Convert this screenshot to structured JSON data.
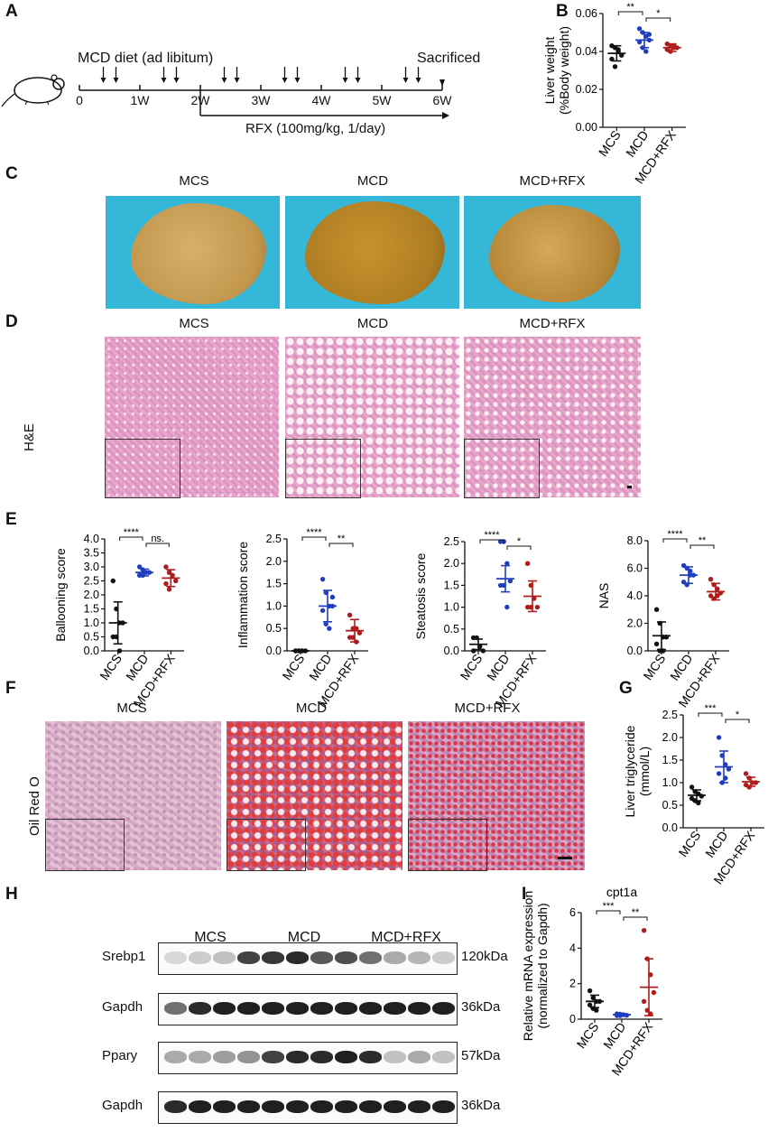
{
  "panels": {
    "A": "A",
    "B": "B",
    "C": "C",
    "D": "D",
    "E": "E",
    "F": "F",
    "G": "G",
    "H": "H",
    "I": "I"
  },
  "groups": [
    "MCS",
    "MCD",
    "MCD+RFX"
  ],
  "colors": {
    "MCS": "#111111",
    "MCD": "#1f3fbf",
    "MCD+RFX": "#b01c1c"
  },
  "panelA": {
    "diet_label": "MCD diet (ad libitum)",
    "sacrificed": "Sacrificed",
    "timeline_ticks": [
      "0",
      "1W",
      "2W",
      "3W",
      "4W",
      "5W",
      "6W"
    ],
    "treatment": "RFX (100mg/kg, 1/day)",
    "arrow_count": 12
  },
  "panelD": {
    "stain": "H&E"
  },
  "panelF": {
    "stain": "Oil Red O"
  },
  "panelH": {
    "group_headers": [
      "MCS",
      "MCD",
      "MCD+RFX"
    ],
    "rows": [
      {
        "protein": "Srebp1",
        "size": "120kDa"
      },
      {
        "protein": "Gapdh",
        "size": "36kDa"
      },
      {
        "protein": "Ppary",
        "size": "57kDa"
      },
      {
        "protein": "Gapdh",
        "size": "36kDa"
      }
    ]
  },
  "chart_data": [
    {
      "panel": "B",
      "type": "scatter",
      "ylabel": "Liver weight\n(%Body weight)",
      "ylim": [
        0,
        0.06
      ],
      "yticks": [
        "0.00",
        "0.02",
        "0.04",
        "0.06"
      ],
      "categories": [
        "MCS",
        "MCD",
        "MCD+RFX"
      ],
      "means": [
        0.039,
        0.046,
        0.042
      ],
      "sd": [
        0.004,
        0.004,
        0.002
      ],
      "points": [
        [
          0.043,
          0.042,
          0.04,
          0.038,
          0.036,
          0.032,
          0.041
        ],
        [
          0.052,
          0.05,
          0.048,
          0.046,
          0.045,
          0.042,
          0.04,
          0.049
        ],
        [
          0.044,
          0.043,
          0.042,
          0.042,
          0.041,
          0.04,
          0.043
        ]
      ],
      "sig": [
        {
          "from": 0,
          "to": 1,
          "label": "**"
        },
        {
          "from": 1,
          "to": 2,
          "label": "*"
        }
      ]
    },
    {
      "panel": "E1",
      "type": "scatter",
      "ylabel": "Ballooning score",
      "ylim": [
        0,
        4
      ],
      "yticks": [
        "0.0",
        "0.5",
        "1.0",
        "1.5",
        "2.0",
        "2.5",
        "3.0",
        "3.5",
        "4.0"
      ],
      "categories": [
        "MCS",
        "MCD",
        "MCD+RFX"
      ],
      "means": [
        1.0,
        2.8,
        2.6
      ],
      "sd": [
        0.75,
        0.12,
        0.3
      ],
      "points": [
        [
          2.5,
          1.5,
          1.0,
          1.0,
          0.5,
          0.5,
          0.0
        ],
        [
          3.0,
          2.9,
          2.8,
          2.8,
          2.7,
          2.7
        ],
        [
          3.0,
          2.8,
          2.7,
          2.5,
          2.4,
          2.2
        ]
      ],
      "sig": [
        {
          "from": 0,
          "to": 1,
          "label": "****"
        },
        {
          "from": 1,
          "to": 2,
          "label": "ns."
        }
      ]
    },
    {
      "panel": "E2",
      "type": "scatter",
      "ylabel": "Inflammation score",
      "ylim": [
        0,
        2.5
      ],
      "yticks": [
        "0.0",
        "0.5",
        "1.0",
        "1.5",
        "2.0",
        "2.5"
      ],
      "categories": [
        "MCS",
        "MCD",
        "MCD+RFX"
      ],
      "means": [
        0.0,
        1.0,
        0.45
      ],
      "sd": [
        0.0,
        0.35,
        0.25
      ],
      "points": [
        [
          0,
          0,
          0,
          0,
          0,
          0,
          0
        ],
        [
          1.6,
          1.3,
          1.0,
          1.0,
          0.9,
          0.6,
          0.5,
          1.2
        ],
        [
          0.8,
          0.5,
          0.5,
          0.4,
          0.3,
          0.3,
          0.2
        ]
      ],
      "sig": [
        {
          "from": 0,
          "to": 1,
          "label": "****"
        },
        {
          "from": 1,
          "to": 2,
          "label": "**"
        }
      ]
    },
    {
      "panel": "E3",
      "type": "scatter",
      "ylabel": "Steatosis score",
      "ylim": [
        0,
        2.5
      ],
      "yticks": [
        "0.0",
        "0.5",
        "1.0",
        "1.5",
        "2.0",
        "2.5"
      ],
      "categories": [
        "MCS",
        "MCD",
        "MCD+RFX"
      ],
      "means": [
        0.15,
        1.65,
        1.25
      ],
      "sd": [
        0.12,
        0.3,
        0.35
      ],
      "points": [
        [
          0.3,
          0.3,
          0.1,
          0.0,
          0.0
        ],
        [
          2.5,
          2.5,
          2.0,
          1.6,
          1.5,
          1.5,
          1.0
        ],
        [
          2.0,
          1.5,
          1.2,
          1.0,
          1.0,
          1.0
        ]
      ],
      "sig": [
        {
          "from": 0,
          "to": 1,
          "label": "****"
        },
        {
          "from": 1,
          "to": 2,
          "label": "*"
        }
      ]
    },
    {
      "panel": "E4",
      "type": "scatter",
      "ylabel": "NAS",
      "ylim": [
        0,
        8
      ],
      "yticks": [
        "0.0",
        "2.0",
        "4.0",
        "6.0",
        "8.0"
      ],
      "categories": [
        "MCS",
        "MCD",
        "MCD+RFX"
      ],
      "means": [
        1.1,
        5.5,
        4.3
      ],
      "sd": [
        1.0,
        0.6,
        0.6
      ],
      "points": [
        [
          3.0,
          2.0,
          1.0,
          1.0,
          0.5,
          0.0,
          0.0
        ],
        [
          6.2,
          6.0,
          5.5,
          5.5,
          5.0,
          4.8,
          5.8
        ],
        [
          5.2,
          4.8,
          4.5,
          4.2,
          4.0,
          3.8,
          4.0
        ]
      ],
      "sig": [
        {
          "from": 0,
          "to": 1,
          "label": "****"
        },
        {
          "from": 1,
          "to": 2,
          "label": "**"
        }
      ]
    },
    {
      "panel": "G",
      "type": "scatter",
      "ylabel": "Liver triglyceride\n(mmol/L)",
      "ylim": [
        0,
        2.5
      ],
      "yticks": [
        "0.0",
        "0.5",
        "1.0",
        "1.5",
        "2.0",
        "2.5"
      ],
      "categories": [
        "MCS",
        "MCD",
        "MCD+RFX"
      ],
      "means": [
        0.72,
        1.35,
        1.02
      ],
      "sd": [
        0.12,
        0.35,
        0.1
      ],
      "points": [
        [
          0.9,
          0.8,
          0.75,
          0.7,
          0.65,
          0.6,
          0.55
        ],
        [
          2.0,
          1.6,
          1.4,
          1.3,
          1.2,
          1.0,
          1.1
        ],
        [
          1.2,
          1.1,
          1.0,
          1.0,
          0.95,
          0.9
        ]
      ],
      "sig": [
        {
          "from": 0,
          "to": 1,
          "label": "***"
        },
        {
          "from": 1,
          "to": 2,
          "label": "*"
        }
      ]
    },
    {
      "panel": "I",
      "type": "scatter",
      "title": "cpt1a",
      "ylabel": "Relative mRNA expression\n(normalized to Gapdh)",
      "ylim": [
        0,
        6
      ],
      "yticks": [
        "0",
        "2",
        "4",
        "6"
      ],
      "categories": [
        "MCS",
        "MCD",
        "MCD+RFX"
      ],
      "means": [
        1.0,
        0.25,
        1.8
      ],
      "sd": [
        0.35,
        0.05,
        1.6
      ],
      "points": [
        [
          1.6,
          1.2,
          1.0,
          1.0,
          0.8,
          0.6,
          0.5
        ],
        [
          0.3,
          0.28,
          0.25,
          0.22,
          0.2,
          0.2
        ],
        [
          5.0,
          3.4,
          2.5,
          1.5,
          1.0,
          0.5,
          0.3
        ]
      ],
      "sig": [
        {
          "from": 0,
          "to": 1,
          "label": "***"
        },
        {
          "from": 1,
          "to": 2,
          "label": "**"
        }
      ]
    }
  ]
}
